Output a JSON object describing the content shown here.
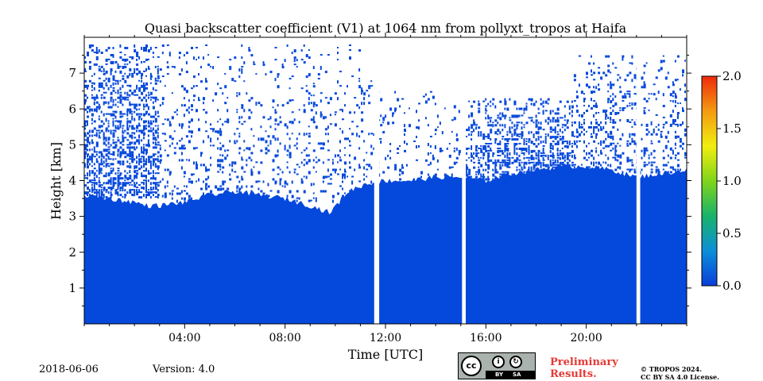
{
  "chart_data": {
    "type": "heatmap",
    "title": "Quasi backscatter coefficient (V1) at 1064 nm from pollyxt_tropos at Haifa",
    "xlabel": "Time [UTC]",
    "ylabel": "Height [km]",
    "xlim": [
      0,
      24
    ],
    "ylim": [
      0,
      8
    ],
    "x_ticks": [
      {
        "value": 4,
        "label": "04:00"
      },
      {
        "value": 8,
        "label": "08:00"
      },
      {
        "value": 12,
        "label": "12:00"
      },
      {
        "value": 16,
        "label": "16:00"
      },
      {
        "value": 20,
        "label": "20:00"
      }
    ],
    "y_ticks": [
      {
        "value": 1,
        "label": "1"
      },
      {
        "value": 2,
        "label": "2"
      },
      {
        "value": 3,
        "label": "3"
      },
      {
        "value": 4,
        "label": "4"
      },
      {
        "value": 5,
        "label": "5"
      },
      {
        "value": 6,
        "label": "6"
      },
      {
        "value": 7,
        "label": "7"
      }
    ],
    "colorbar": {
      "min": 0.0,
      "max": 2.0,
      "ticks": [
        {
          "value": 0.0,
          "label": "0.0"
        },
        {
          "value": 0.5,
          "label": "0.5"
        },
        {
          "value": 1.0,
          "label": "1.0"
        },
        {
          "value": 1.5,
          "label": "1.5"
        },
        {
          "value": 2.0,
          "label": "2.0"
        }
      ],
      "colors": [
        "#0a3ddb",
        "#0b8fd8",
        "#19b36b",
        "#7fd51a",
        "#f2ee10",
        "#f49a12",
        "#ee2a0a"
      ]
    },
    "fill_color": "#0548dc",
    "boundary_top_km": [
      {
        "t": 0.0,
        "h": 3.6
      },
      {
        "t": 1.0,
        "h": 3.5
      },
      {
        "t": 2.0,
        "h": 3.4
      },
      {
        "t": 2.5,
        "h": 3.3
      },
      {
        "t": 3.0,
        "h": 3.3
      },
      {
        "t": 4.0,
        "h": 3.4
      },
      {
        "t": 5.0,
        "h": 3.6
      },
      {
        "t": 6.0,
        "h": 3.7
      },
      {
        "t": 7.0,
        "h": 3.6
      },
      {
        "t": 8.0,
        "h": 3.5
      },
      {
        "t": 9.0,
        "h": 3.3
      },
      {
        "t": 9.8,
        "h": 3.1
      },
      {
        "t": 10.5,
        "h": 3.7
      },
      {
        "t": 11.2,
        "h": 3.9
      },
      {
        "t": 12.0,
        "h": 4.0
      },
      {
        "t": 13.0,
        "h": 4.0
      },
      {
        "t": 14.0,
        "h": 4.1
      },
      {
        "t": 15.0,
        "h": 4.1
      },
      {
        "t": 16.0,
        "h": 4.0
      },
      {
        "t": 17.0,
        "h": 4.2
      },
      {
        "t": 18.0,
        "h": 4.3
      },
      {
        "t": 19.0,
        "h": 4.4
      },
      {
        "t": 20.0,
        "h": 4.4
      },
      {
        "t": 21.0,
        "h": 4.3
      },
      {
        "t": 22.0,
        "h": 4.1
      },
      {
        "t": 23.0,
        "h": 4.2
      },
      {
        "t": 24.0,
        "h": 4.3
      }
    ],
    "data_gaps_utc": [
      {
        "start": 11.55,
        "end": 11.75
      },
      {
        "start": 15.05,
        "end": 15.2
      },
      {
        "start": 22.0,
        "end": 22.15
      }
    ],
    "noisy_layers": [
      {
        "t_start": 0.0,
        "t_end": 3.0,
        "h_bottom": 3.5,
        "h_top": 7.8,
        "density": 0.65
      },
      {
        "t_start": 3.0,
        "t_end": 11.5,
        "h_bottom": 3.4,
        "h_top": 7.8,
        "density": 0.18
      },
      {
        "t_start": 11.5,
        "t_end": 15.0,
        "h_bottom": 4.0,
        "h_top": 6.5,
        "density": 0.12
      },
      {
        "t_start": 15.2,
        "t_end": 19.5,
        "h_bottom": 4.0,
        "h_top": 6.3,
        "density": 0.6
      },
      {
        "t_start": 19.5,
        "t_end": 24.0,
        "h_bottom": 4.2,
        "h_top": 7.5,
        "density": 0.3
      }
    ]
  },
  "footer": {
    "date": "2018-06-06",
    "version": "Version: 4.0",
    "preliminary_line1": "Preliminary",
    "preliminary_line2": "Results.",
    "copyright_line1": "© TROPOS 2024.",
    "copyright_line2": "CC BY SA 4.0 License.",
    "license_badge": {
      "cc": "cc",
      "by": "BY",
      "sa": "SA"
    }
  }
}
